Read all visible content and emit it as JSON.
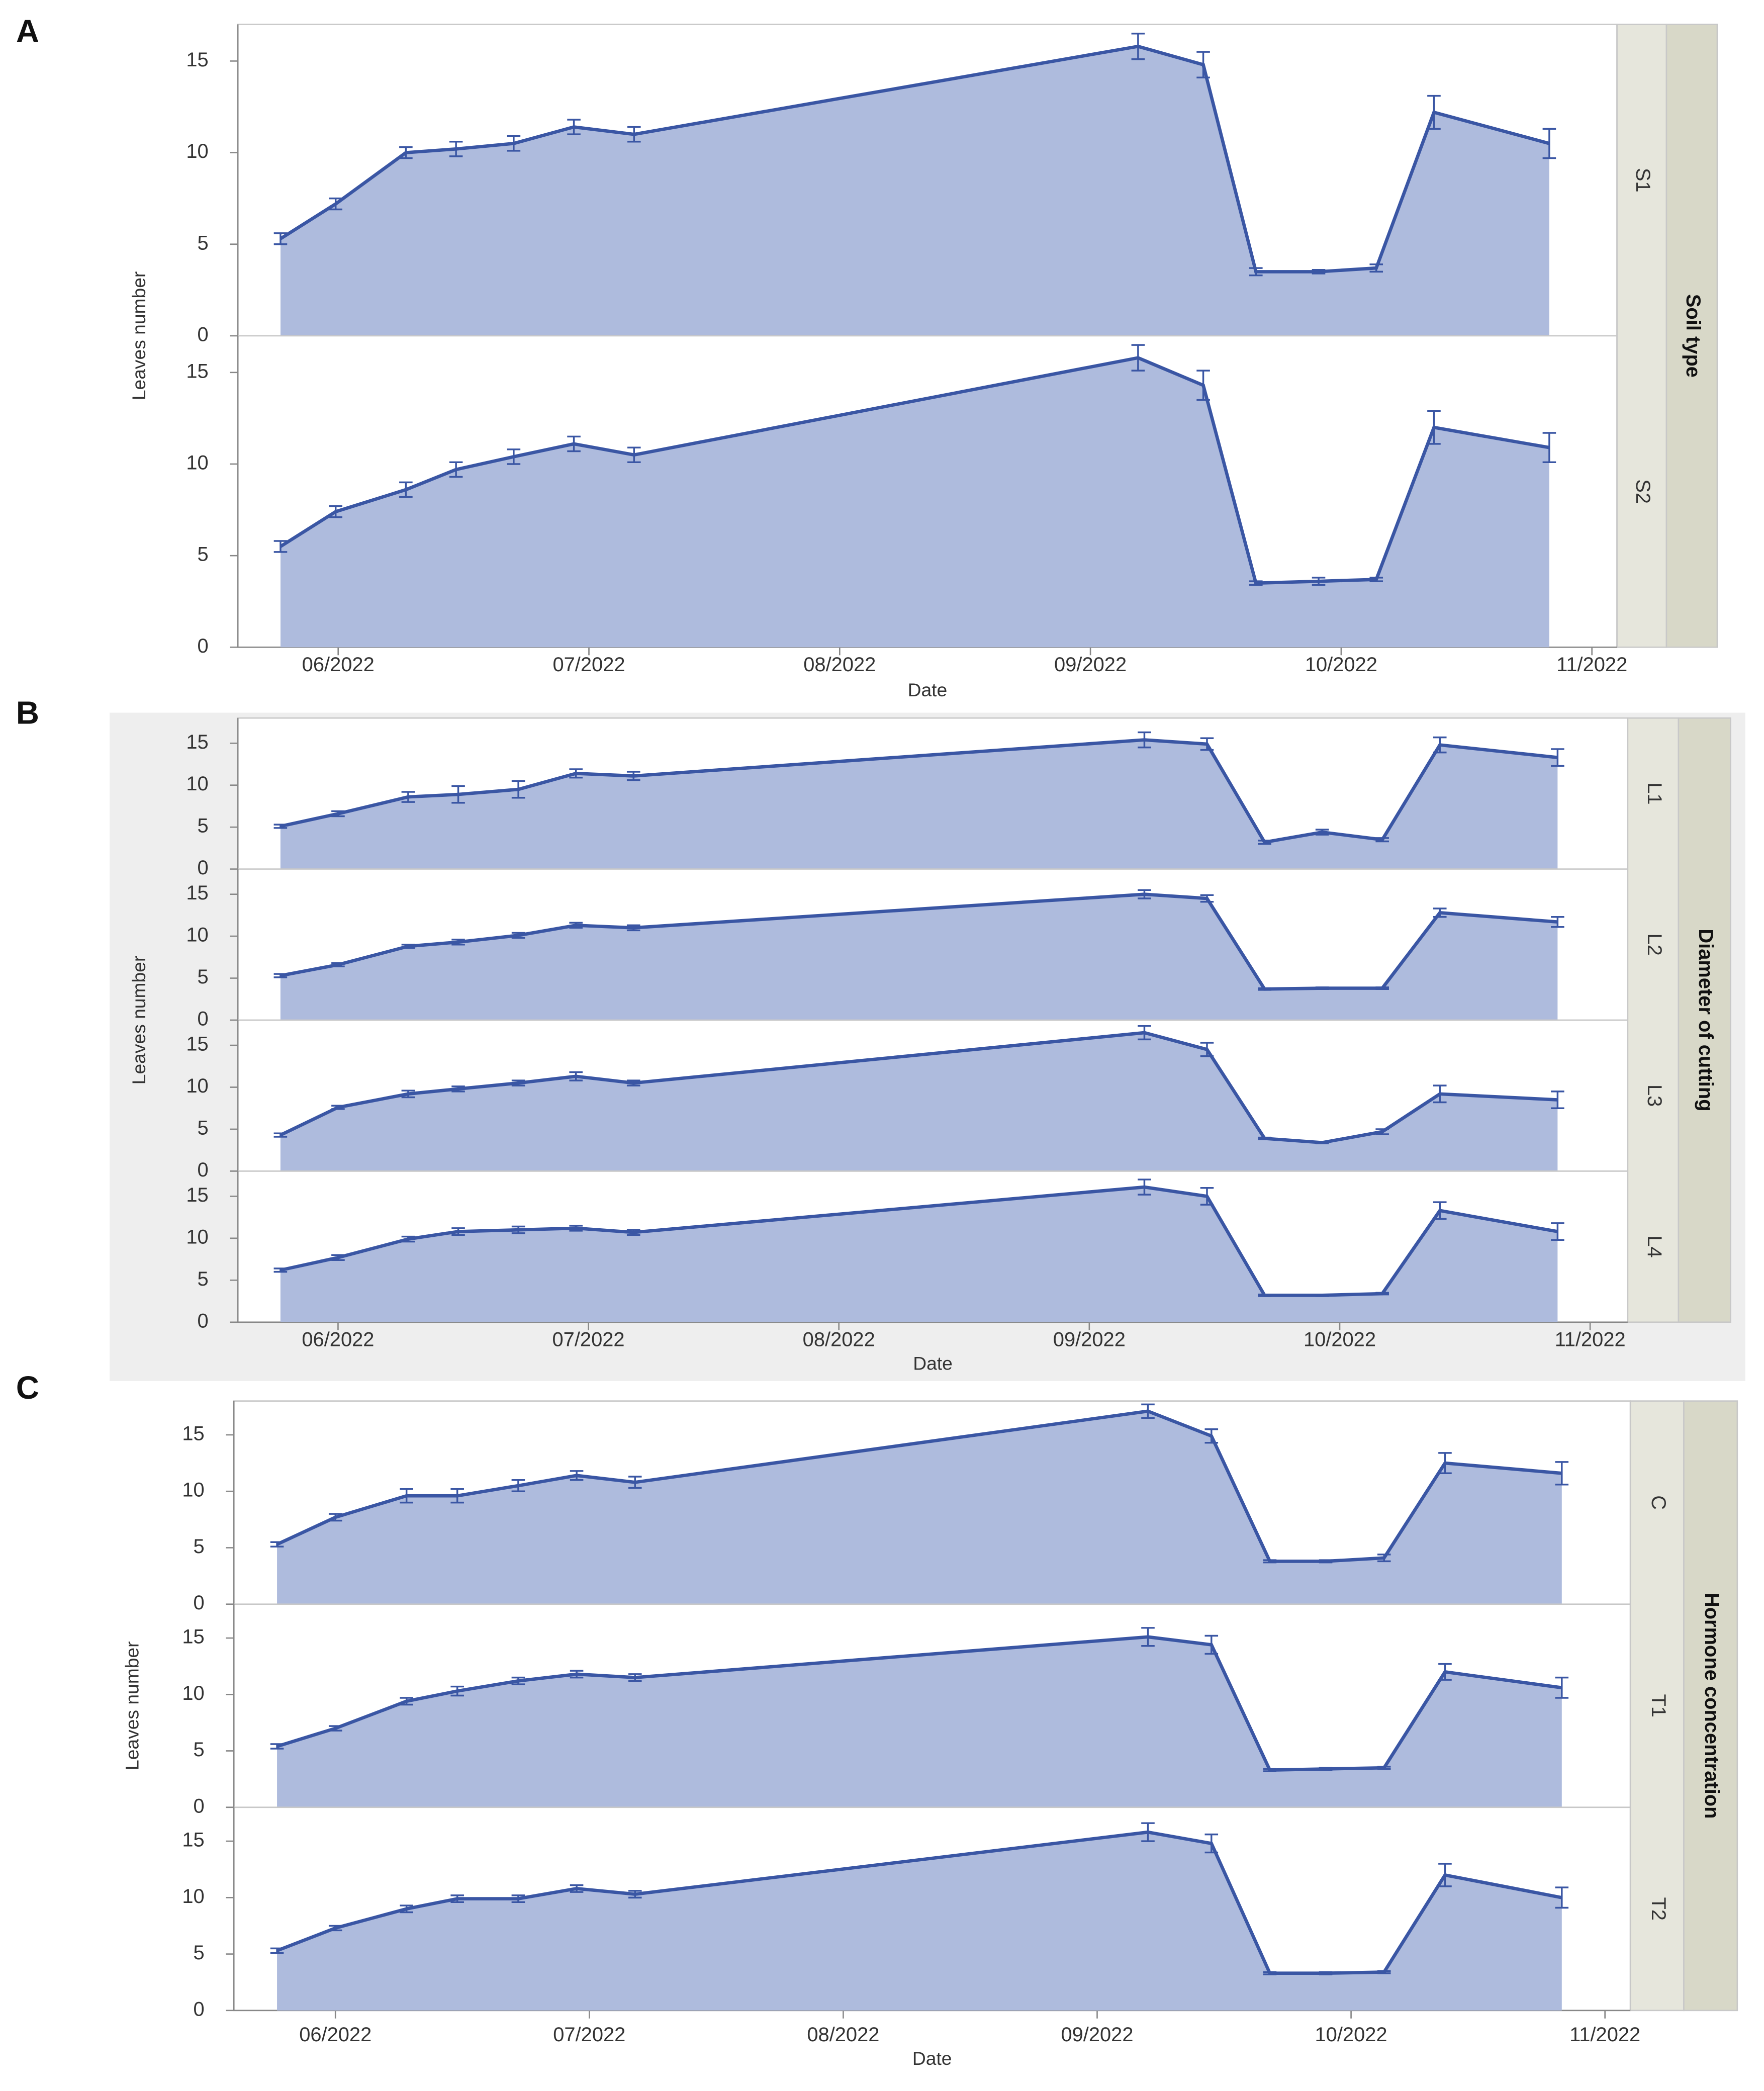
{
  "chart_data": [
    {
      "type": "area",
      "panel_label": "A",
      "facet_title": "Soil type",
      "xlabel": "Date",
      "ylabel": "Leaves number",
      "color": "#3a56a4",
      "fill": "#aebbdd",
      "x": [
        5.77,
        5.99,
        6.27,
        6.47,
        6.7,
        6.94,
        7.18,
        9.19,
        9.45,
        9.66,
        9.91,
        10.14,
        10.37,
        10.83
      ],
      "xlim": [
        5.6,
        11.1
      ],
      "xticks": [
        {
          "value": 6,
          "label": "06/2022"
        },
        {
          "value": 7,
          "label": "07/2022"
        },
        {
          "value": 8,
          "label": "08/2022"
        },
        {
          "value": 9,
          "label": "09/2022"
        },
        {
          "value": 10,
          "label": "10/2022"
        },
        {
          "value": 11,
          "label": "11/2022"
        }
      ],
      "ylim": [
        0,
        17
      ],
      "yticks": [
        0,
        5,
        10,
        15
      ],
      "series": [
        {
          "name": "S1",
          "values": [
            5.3,
            7.2,
            10.0,
            10.2,
            10.5,
            11.4,
            11.0,
            15.8,
            14.8,
            3.5,
            3.5,
            3.7,
            12.2,
            10.5
          ],
          "errors": [
            0.3,
            0.3,
            0.3,
            0.4,
            0.4,
            0.4,
            0.4,
            0.7,
            0.7,
            0.2,
            0.1,
            0.2,
            0.9,
            0.8
          ]
        },
        {
          "name": "S2",
          "values": [
            5.5,
            7.4,
            8.6,
            9.7,
            10.4,
            11.1,
            10.5,
            15.8,
            14.3,
            3.5,
            3.6,
            3.7,
            12.0,
            10.9
          ],
          "errors": [
            0.3,
            0.3,
            0.4,
            0.4,
            0.4,
            0.4,
            0.4,
            0.7,
            0.8,
            0.1,
            0.2,
            0.1,
            0.9,
            0.8
          ]
        }
      ]
    },
    {
      "type": "area",
      "panel_label": "B",
      "facet_title": "Diameter of cutting",
      "xlabel": "Date",
      "ylabel": "Leaves number",
      "color": "#3a56a4",
      "fill": "#aebbdd",
      "x": [
        5.77,
        6.0,
        6.28,
        6.48,
        6.72,
        6.95,
        7.18,
        9.22,
        9.47,
        9.7,
        9.93,
        10.17,
        10.4,
        10.87
      ],
      "xlim": [
        5.6,
        11.15
      ],
      "xticks": [
        {
          "value": 6,
          "label": "06/2022"
        },
        {
          "value": 7,
          "label": "07/2022"
        },
        {
          "value": 8,
          "label": "08/2022"
        },
        {
          "value": 9,
          "label": "09/2022"
        },
        {
          "value": 10,
          "label": "10/2022"
        },
        {
          "value": 11,
          "label": "11/2022"
        }
      ],
      "ylim": [
        0,
        18
      ],
      "yticks": [
        0,
        5,
        10,
        15
      ],
      "series": [
        {
          "name": "L1",
          "values": [
            5.1,
            6.6,
            8.6,
            8.9,
            9.5,
            11.4,
            11.1,
            15.4,
            14.9,
            3.2,
            4.4,
            3.5,
            14.8,
            13.3
          ],
          "errors": [
            0.2,
            0.3,
            0.6,
            1.0,
            1.0,
            0.5,
            0.5,
            0.9,
            0.7,
            0.2,
            0.3,
            0.2,
            0.9,
            1.0
          ]
        },
        {
          "name": "L2",
          "values": [
            5.3,
            6.6,
            8.8,
            9.3,
            10.1,
            11.3,
            11.0,
            15.0,
            14.5,
            3.7,
            3.8,
            3.8,
            12.8,
            11.7
          ],
          "errors": [
            0.2,
            0.2,
            0.2,
            0.3,
            0.3,
            0.3,
            0.3,
            0.5,
            0.4,
            0.1,
            0.1,
            0.1,
            0.5,
            0.6
          ]
        },
        {
          "name": "L3",
          "values": [
            4.3,
            7.6,
            9.2,
            9.8,
            10.5,
            11.3,
            10.5,
            16.5,
            14.5,
            3.9,
            3.4,
            4.7,
            9.2,
            8.5
          ],
          "errors": [
            0.2,
            0.2,
            0.4,
            0.3,
            0.3,
            0.5,
            0.3,
            0.8,
            0.8,
            0.1,
            0.1,
            0.3,
            1.0,
            1.0
          ]
        },
        {
          "name": "L4",
          "values": [
            6.2,
            7.7,
            9.9,
            10.8,
            11.0,
            11.2,
            10.7,
            16.1,
            15.0,
            3.2,
            3.2,
            3.4,
            13.3,
            10.8
          ],
          "errors": [
            0.2,
            0.3,
            0.3,
            0.4,
            0.4,
            0.3,
            0.3,
            0.9,
            1.0,
            0.1,
            0.1,
            0.1,
            1.0,
            1.0
          ]
        }
      ]
    },
    {
      "type": "area",
      "panel_label": "C",
      "facet_title": "Hormone concentration",
      "xlabel": "Date",
      "ylabel": "Leaves number",
      "color": "#3a56a4",
      "fill": "#aebbdd",
      "x": [
        5.77,
        6.0,
        6.28,
        6.48,
        6.72,
        6.95,
        7.18,
        9.2,
        9.45,
        9.68,
        9.9,
        10.13,
        10.37,
        10.83
      ],
      "xlim": [
        5.6,
        11.1
      ],
      "xticks": [
        {
          "value": 6,
          "label": "06/2022"
        },
        {
          "value": 7,
          "label": "07/2022"
        },
        {
          "value": 8,
          "label": "08/2022"
        },
        {
          "value": 9,
          "label": "09/2022"
        },
        {
          "value": 10,
          "label": "10/2022"
        },
        {
          "value": 11,
          "label": "11/2022"
        }
      ],
      "ylim": [
        0,
        18
      ],
      "yticks": [
        0,
        5,
        10,
        15
      ],
      "series": [
        {
          "name": "C",
          "values": [
            5.3,
            7.7,
            9.6,
            9.6,
            10.5,
            11.4,
            10.8,
            17.1,
            14.9,
            3.8,
            3.8,
            4.1,
            12.5,
            11.6
          ],
          "errors": [
            0.2,
            0.3,
            0.6,
            0.6,
            0.5,
            0.4,
            0.5,
            0.6,
            0.6,
            0.1,
            0.1,
            0.3,
            0.9,
            1.0
          ]
        },
        {
          "name": "T1",
          "values": [
            5.4,
            7.0,
            9.4,
            10.3,
            11.2,
            11.8,
            11.5,
            15.1,
            14.4,
            3.3,
            3.4,
            3.5,
            12.0,
            10.6
          ],
          "errors": [
            0.2,
            0.2,
            0.3,
            0.4,
            0.3,
            0.3,
            0.3,
            0.8,
            0.8,
            0.1,
            0.1,
            0.1,
            0.7,
            0.9
          ]
        },
        {
          "name": "T2",
          "values": [
            5.3,
            7.3,
            9.0,
            9.9,
            9.9,
            10.8,
            10.3,
            15.8,
            14.8,
            3.3,
            3.3,
            3.4,
            12.0,
            10.0
          ],
          "errors": [
            0.2,
            0.2,
            0.3,
            0.3,
            0.3,
            0.3,
            0.3,
            0.8,
            0.8,
            0.1,
            0.1,
            0.1,
            1.0,
            0.9
          ]
        }
      ]
    }
  ]
}
